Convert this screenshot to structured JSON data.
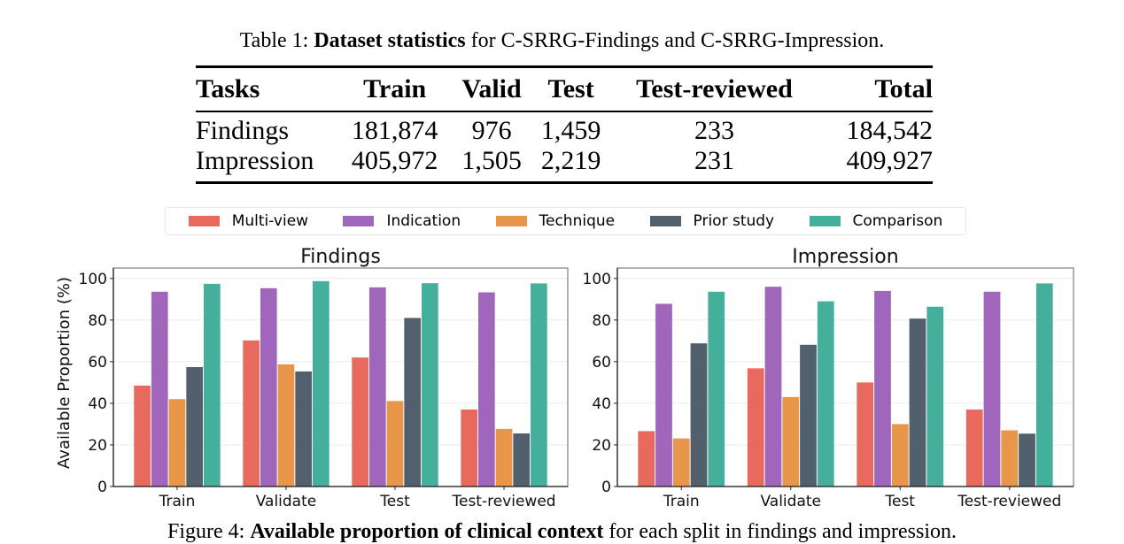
{
  "table": {
    "caption_prefix": "Table 1:",
    "caption_bold": "Dataset statistics",
    "caption_rest": "for C-SRRG-Findings and C-SRRG-Impression.",
    "headers": [
      "Tasks",
      "Train",
      "Valid",
      "Test",
      "Test-reviewed",
      "Total"
    ],
    "rows": [
      [
        "Findings",
        "181,874",
        "976",
        "1,459",
        "233",
        "184,542"
      ],
      [
        "Impression",
        "405,972",
        "1,505",
        "2,219",
        "231",
        "409,927"
      ]
    ]
  },
  "legend": [
    {
      "label": "Multi-view",
      "color": "#e8695e"
    },
    {
      "label": "Indication",
      "color": "#a066bb"
    },
    {
      "label": "Technique",
      "color": "#e8964a"
    },
    {
      "label": "Prior study",
      "color": "#525f6d"
    },
    {
      "label": "Comparison",
      "color": "#44b09b"
    }
  ],
  "chart_data": [
    {
      "type": "bar",
      "title": "Findings",
      "xlabel": "",
      "ylabel": "Available Proportion (%)",
      "ylim": [
        0,
        105
      ],
      "yticks": [
        0,
        20,
        40,
        60,
        80,
        100
      ],
      "grid": true,
      "legend_position": "top-center",
      "categories": [
        "Train",
        "Validate",
        "Test",
        "Test-reviewed"
      ],
      "series": [
        {
          "name": "Multi-view",
          "values": [
            48.5,
            70.2,
            62.0,
            37.0
          ]
        },
        {
          "name": "Indication",
          "values": [
            93.6,
            95.3,
            95.7,
            93.3
          ]
        },
        {
          "name": "Technique",
          "values": [
            42.0,
            58.7,
            41.1,
            27.7
          ]
        },
        {
          "name": "Prior study",
          "values": [
            57.4,
            55.3,
            81.0,
            25.5
          ]
        },
        {
          "name": "Comparison",
          "values": [
            97.4,
            98.7,
            97.7,
            97.6
          ]
        }
      ]
    },
    {
      "type": "bar",
      "title": "Impression",
      "xlabel": "",
      "ylabel": "",
      "ylim": [
        0,
        105
      ],
      "yticks": [
        0,
        20,
        40,
        60,
        80,
        100
      ],
      "grid": true,
      "legend_position": "top-center",
      "categories": [
        "Train",
        "Validate",
        "Test",
        "Test-reviewed"
      ],
      "series": [
        {
          "name": "Multi-view",
          "values": [
            26.6,
            56.8,
            50.0,
            37.0
          ]
        },
        {
          "name": "Indication",
          "values": [
            87.8,
            96.0,
            94.0,
            93.6
          ]
        },
        {
          "name": "Technique",
          "values": [
            23.1,
            43.0,
            30.0,
            27.0
          ]
        },
        {
          "name": "Prior study",
          "values": [
            68.8,
            68.1,
            80.7,
            25.4
          ]
        },
        {
          "name": "Comparison",
          "values": [
            93.6,
            89.0,
            86.4,
            97.6
          ]
        }
      ]
    }
  ],
  "figure_caption": {
    "prefix": "Figure 4:",
    "bold": "Available proportion of clinical context",
    "rest": "for each split in findings and impression."
  }
}
